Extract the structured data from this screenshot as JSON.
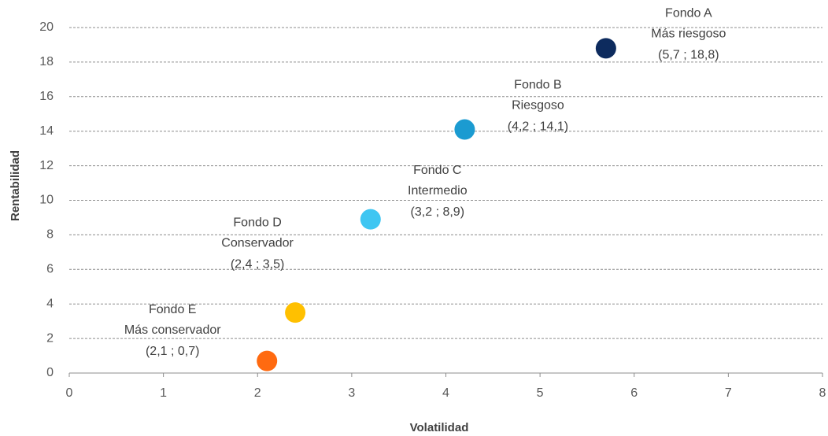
{
  "chart_data": {
    "type": "scatter",
    "x_label": "Volatilidad",
    "y_label": "Rentabilidad",
    "xlim": [
      0,
      8
    ],
    "xticks": [
      0,
      1,
      2,
      3,
      4,
      5,
      6,
      7,
      8
    ],
    "ylim": [
      0,
      20
    ],
    "yticks": [
      0,
      2,
      4,
      6,
      8,
      10,
      12,
      14,
      16,
      18,
      20
    ],
    "grid": true,
    "series": [
      {
        "name": "Fondo A",
        "description": "Más riesgoso",
        "color": "#0d2b5e",
        "x": [
          5.7
        ],
        "values": [
          18.8
        ],
        "value_labels": [
          "(5,7 ; 18,8)"
        ]
      },
      {
        "name": "Fondo B",
        "description": "Riesgoso",
        "color": "#1b9bd1",
        "x": [
          4.2
        ],
        "values": [
          14.1
        ],
        "value_labels": [
          "(4,2 ; 14,1)"
        ]
      },
      {
        "name": "Fondo C",
        "description": "Intermedio",
        "color": "#3ec6f2",
        "x": [
          3.2
        ],
        "values": [
          8.9
        ],
        "value_labels": [
          "(3,2 ; 8,9)"
        ]
      },
      {
        "name": "Fondo D",
        "description": "Conservador",
        "color": "#ffc000",
        "x": [
          2.4
        ],
        "values": [
          3.5
        ],
        "value_labels": [
          "(2,4 ; 3,5)"
        ]
      },
      {
        "name": "Fondo E",
        "description": "Más conservador",
        "color": "#ff6a10",
        "x": [
          2.1
        ],
        "values": [
          0.7
        ],
        "value_labels": [
          "(2,1 ; 0,7)"
        ]
      }
    ]
  }
}
